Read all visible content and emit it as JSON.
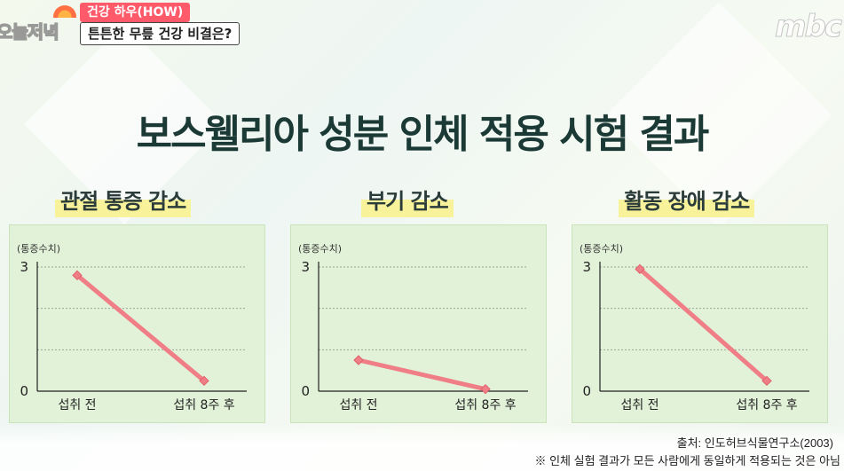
{
  "overlay": {
    "program_logo": "오늘저녁",
    "segment_tag": "건강 하우(HOW)",
    "headline": "튼튼한 무릎 건강 비결은?",
    "channel_logo": "mbc"
  },
  "main_title": "보스웰리아 성분 인체 적용 시험 결과",
  "colors": {
    "line": "#ef7e86",
    "point": "#ef7e86",
    "panel": "#e2f2d8",
    "highlight": "#f8f29a"
  },
  "chart_data": [
    {
      "type": "line",
      "title": "관절 통증 감소",
      "ylabel": "(통증수치)",
      "categories": [
        "섭취 전",
        "섭취 8주 후"
      ],
      "values": [
        2.8,
        0.25
      ],
      "ylim": [
        0,
        3
      ],
      "yticks": [
        0,
        3
      ],
      "grid": true
    },
    {
      "type": "line",
      "title": "부기 감소",
      "ylabel": "(통증수치)",
      "categories": [
        "섭취 전",
        "섭취 8주 후"
      ],
      "values": [
        0.75,
        0.05
      ],
      "ylim": [
        0,
        3
      ],
      "yticks": [
        0,
        3
      ],
      "grid": true
    },
    {
      "type": "line",
      "title": "활동 장애 감소",
      "ylabel": "(통증수치)",
      "categories": [
        "섭취 전",
        "섭취 8주 후"
      ],
      "values": [
        2.95,
        0.25
      ],
      "ylim": [
        0,
        3
      ],
      "yticks": [
        0,
        3
      ],
      "grid": true
    }
  ],
  "footer": {
    "source": "출처: 인도허브식물연구소(2003)",
    "disclaimer": "※ 인체 실험 결과가 모든 사람에게 동일하게 적용되는 것은 아님"
  }
}
